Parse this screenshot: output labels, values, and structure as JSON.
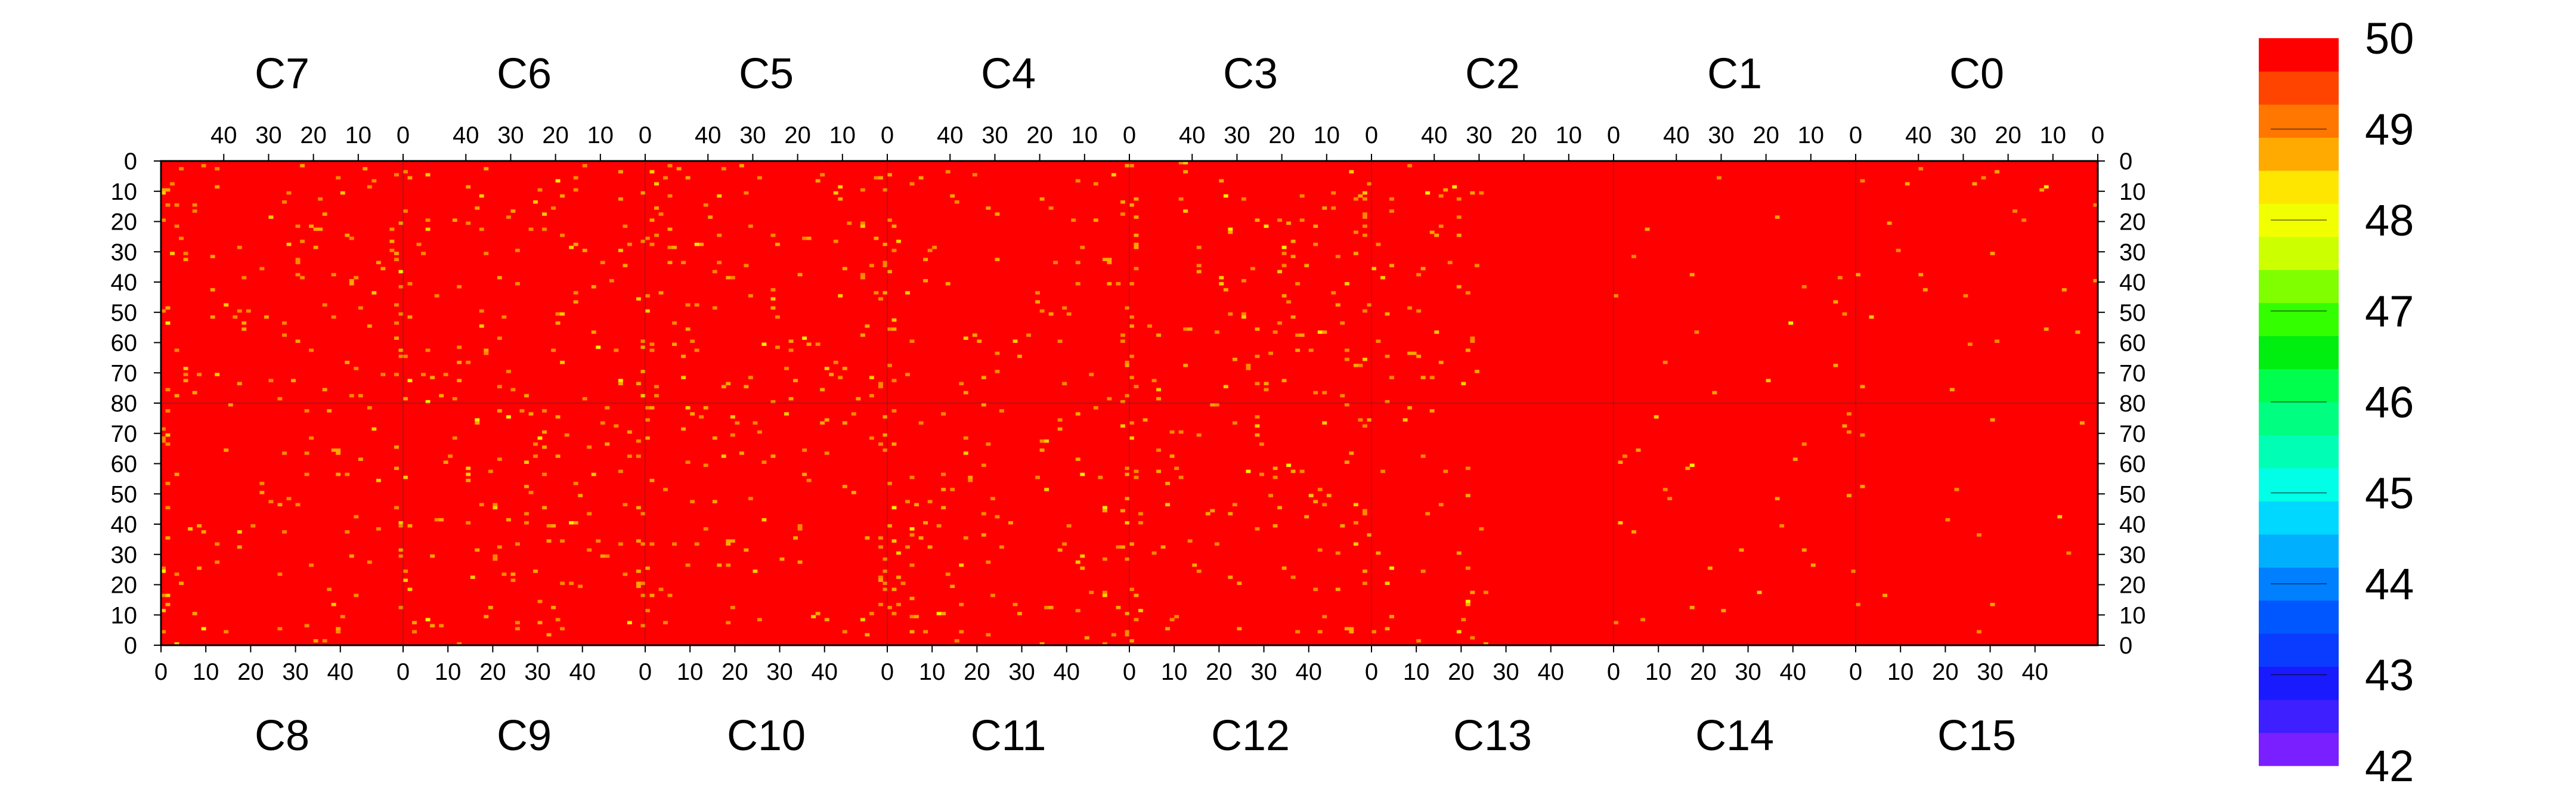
{
  "chart_data": {
    "type": "heatmap",
    "title": "",
    "xlabel": "",
    "ylabel": "",
    "grid": false,
    "top_chips": [
      "C7",
      "C6",
      "C5",
      "C4",
      "C3",
      "C2",
      "C1",
      "C0"
    ],
    "bottom_chips": [
      "C8",
      "C9",
      "C10",
      "C11",
      "C12",
      "C13",
      "C14",
      "C15"
    ],
    "chip_columns": 54,
    "chip_rows": 80,
    "top_x_tick_values": [
      40,
      30,
      20,
      10,
      0
    ],
    "bottom_x_tick_values": [
      0,
      10,
      20,
      30,
      40
    ],
    "y_tick_values_top_half": [
      0,
      10,
      20,
      30,
      40,
      50,
      60,
      70,
      80
    ],
    "y_tick_values_bottom_half": [
      70,
      60,
      50,
      40,
      30,
      20,
      10,
      0
    ],
    "zrange": [
      42,
      50
    ],
    "colorbar_ticks": [
      50,
      49,
      48,
      47,
      46,
      45,
      44,
      43,
      42
    ],
    "colorbar_colors": [
      "#7a1fff",
      "#3d1fff",
      "#1a1aff",
      "#0a3cff",
      "#0057ff",
      "#0080ff",
      "#00b0ff",
      "#00d8ff",
      "#00ffe6",
      "#00ffb5",
      "#00ff80",
      "#00ff4d",
      "#00ee10",
      "#33ff00",
      "#80ff00",
      "#ccff00",
      "#f2ff00",
      "#ffe600",
      "#ffaa00",
      "#ff7700",
      "#ff4400",
      "#ff0000"
    ],
    "baseline_value": 50,
    "baseline_color": "#ff0000",
    "outlier_colors": [
      "#ff8800",
      "#ffa500",
      "#ffcc00",
      "#ffee00",
      "#ffffff"
    ],
    "busier_chips_note_values": {
      "quiet_top": [
        "C1",
        "C0"
      ],
      "quiet_bottom": [
        "C14",
        "C15"
      ]
    }
  }
}
